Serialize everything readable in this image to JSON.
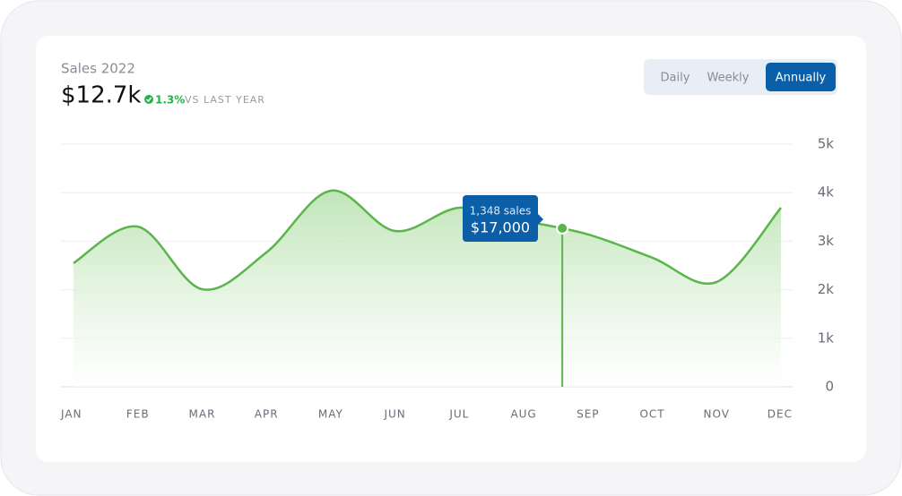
{
  "chart_data": {
    "type": "line",
    "title": "Sales 2022",
    "total": "$12.7k",
    "change": "1.3%",
    "comparison": "VS LAST YEAR",
    "tabs": [
      "Daily",
      "Weekly",
      "Annually"
    ],
    "active_tab": "Annually",
    "tooltip": {
      "label": "1,348 sales",
      "value": "$17,000"
    },
    "categories": [
      "JAN",
      "FEB",
      "MAR",
      "APR",
      "MAY",
      "JUN",
      "JUL",
      "AUG",
      "SEP",
      "OCT",
      "NOV",
      "DEC"
    ],
    "values": [
      2550,
      3300,
      2010,
      2770,
      4040,
      3210,
      3690,
      3420,
      3140,
      2660,
      2160,
      3690
    ],
    "color": "#5ab54a",
    "ylim": [
      0,
      5000
    ],
    "yticks": [
      0,
      {
        "value": 1000,
        "label": "1k"
      },
      {
        "value": 2000,
        "label": "2k"
      },
      {
        "value": 3000,
        "label": "3k"
      },
      {
        "value": 4000,
        "label": "4k"
      },
      {
        "value": 5000,
        "label": "5k"
      }
    ],
    "grid": true
  }
}
